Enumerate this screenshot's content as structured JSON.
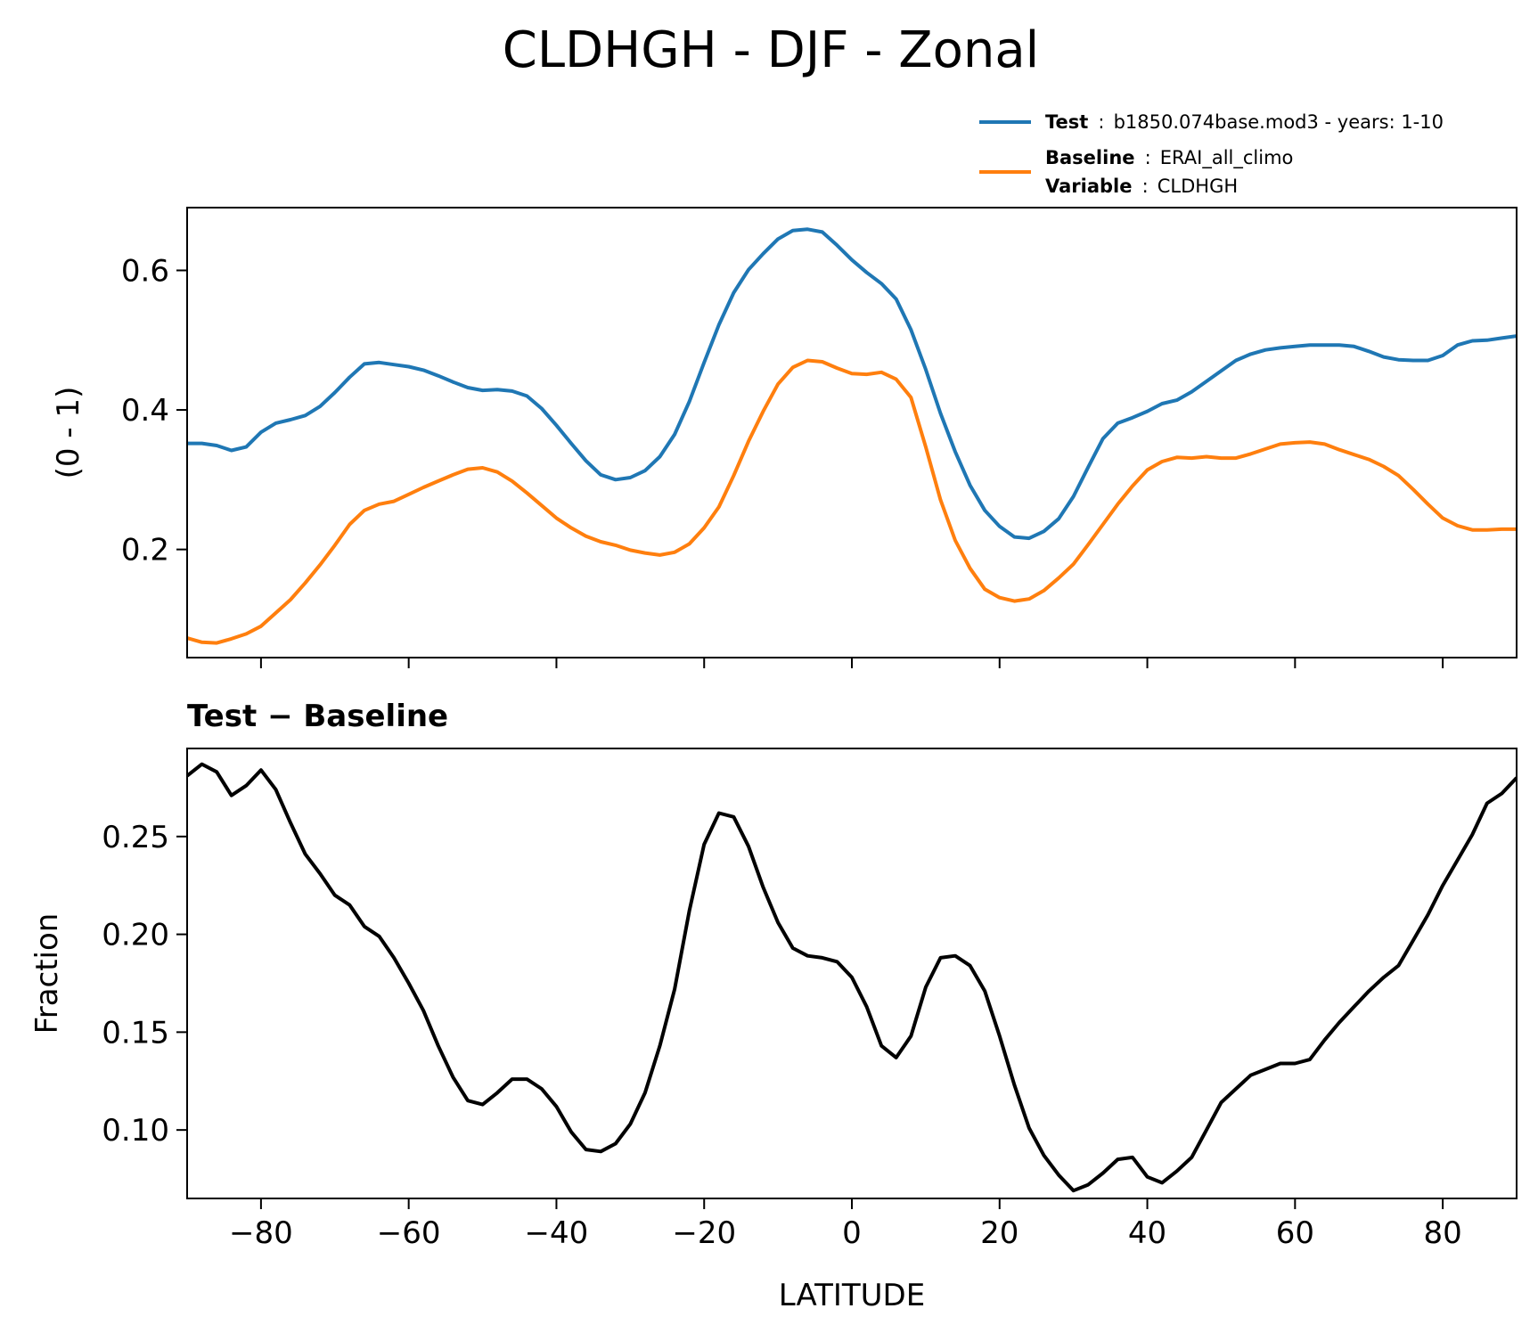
{
  "title": "CLDHGH - DJF - Zonal",
  "legend": {
    "test_key": "Test",
    "test_value": "b1850.074base.mod3 - years: 1-10",
    "baseline_key": "Baseline",
    "baseline_value": "ERAI_all_climo",
    "variable_key": "Variable",
    "variable_value": "CLDHGH",
    "separator": ":"
  },
  "colors": {
    "test": "#1f77b4",
    "baseline": "#ff7f0e",
    "diff": "#000000"
  },
  "chart_data": [
    {
      "type": "line",
      "title": "",
      "xlabel": "",
      "ylabel": "(0 - 1)",
      "xlim": [
        -90,
        90
      ],
      "ylim": [
        0.045,
        0.69
      ],
      "xticks": [
        -80,
        -60,
        -40,
        -20,
        0,
        20,
        40,
        60,
        80
      ],
      "yticks": [
        0.2,
        0.4,
        0.6
      ],
      "ytick_labels": [
        "0.2",
        "0.4",
        "0.6"
      ],
      "show_xtick_labels": false,
      "legend_location": "above-right",
      "x": [
        -90,
        -88,
        -86,
        -84,
        -82,
        -80,
        -78,
        -76,
        -74,
        -72,
        -70,
        -68,
        -66,
        -64,
        -62,
        -60,
        -58,
        -56,
        -54,
        -52,
        -50,
        -48,
        -46,
        -44,
        -42,
        -40,
        -38,
        -36,
        -34,
        -32,
        -30,
        -28,
        -26,
        -24,
        -22,
        -20,
        -18,
        -16,
        -14,
        -12,
        -10,
        -8,
        -6,
        -4,
        -2,
        0,
        2,
        4,
        6,
        8,
        10,
        12,
        14,
        16,
        18,
        20,
        22,
        24,
        26,
        28,
        30,
        32,
        34,
        36,
        38,
        40,
        42,
        44,
        46,
        48,
        50,
        52,
        54,
        56,
        58,
        60,
        62,
        64,
        66,
        68,
        70,
        72,
        74,
        76,
        78,
        80,
        82,
        84,
        86,
        88,
        90
      ],
      "series": [
        {
          "name": "Test",
          "color": "#1f77b4",
          "values": [
            0.352,
            0.352,
            0.349,
            0.342,
            0.347,
            0.368,
            0.381,
            0.386,
            0.392,
            0.405,
            0.425,
            0.447,
            0.466,
            0.468,
            0.465,
            0.462,
            0.457,
            0.449,
            0.44,
            0.432,
            0.428,
            0.429,
            0.427,
            0.42,
            0.402,
            0.378,
            0.352,
            0.327,
            0.307,
            0.3,
            0.303,
            0.313,
            0.333,
            0.365,
            0.412,
            0.468,
            0.522,
            0.568,
            0.601,
            0.624,
            0.645,
            0.657,
            0.659,
            0.655,
            0.636,
            0.615,
            0.597,
            0.581,
            0.559,
            0.515,
            0.458,
            0.395,
            0.34,
            0.292,
            0.256,
            0.233,
            0.218,
            0.216,
            0.226,
            0.244,
            0.276,
            0.318,
            0.359,
            0.381,
            0.389,
            0.398,
            0.409,
            0.414,
            0.426,
            0.441,
            0.456,
            0.471,
            0.48,
            0.486,
            0.489,
            0.491,
            0.493,
            0.493,
            0.493,
            0.491,
            0.484,
            0.476,
            0.472,
            0.471,
            0.471,
            0.478,
            0.493,
            0.499,
            0.5,
            0.503,
            0.506
          ]
        },
        {
          "name": "Baseline",
          "color": "#ff7f0e",
          "values": [
            0.073,
            0.067,
            0.066,
            0.072,
            0.079,
            0.09,
            0.109,
            0.128,
            0.152,
            0.178,
            0.206,
            0.236,
            0.256,
            0.265,
            0.269,
            0.279,
            0.289,
            0.298,
            0.307,
            0.315,
            0.317,
            0.311,
            0.298,
            0.281,
            0.263,
            0.245,
            0.231,
            0.219,
            0.211,
            0.206,
            0.199,
            0.195,
            0.192,
            0.196,
            0.208,
            0.231,
            0.261,
            0.306,
            0.355,
            0.398,
            0.437,
            0.461,
            0.471,
            0.469,
            0.46,
            0.452,
            0.451,
            0.454,
            0.444,
            0.418,
            0.347,
            0.271,
            0.213,
            0.173,
            0.143,
            0.131,
            0.126,
            0.129,
            0.141,
            0.159,
            0.179,
            0.207,
            0.236,
            0.265,
            0.291,
            0.314,
            0.326,
            0.332,
            0.331,
            0.333,
            0.331,
            0.331,
            0.337,
            0.344,
            0.351,
            0.353,
            0.354,
            0.351,
            0.343,
            0.336,
            0.329,
            0.319,
            0.306,
            0.286,
            0.265,
            0.245,
            0.234,
            0.228,
            0.228,
            0.229,
            0.229
          ]
        }
      ]
    },
    {
      "type": "line",
      "title": "Test − Baseline",
      "xlabel": "LATITUDE",
      "ylabel": "Fraction",
      "xlim": [
        -90,
        90
      ],
      "ylim": [
        0.065,
        0.295
      ],
      "xticks": [
        -80,
        -60,
        -40,
        -20,
        0,
        20,
        40,
        60,
        80
      ],
      "xtick_labels": [
        "−80",
        "−60",
        "−40",
        "−20",
        "0",
        "20",
        "40",
        "60",
        "80"
      ],
      "yticks": [
        0.1,
        0.15,
        0.2,
        0.25
      ],
      "ytick_labels": [
        "0.10",
        "0.15",
        "0.20",
        "0.25"
      ],
      "x": [
        -90,
        -88,
        -86,
        -84,
        -82,
        -80,
        -78,
        -76,
        -74,
        -72,
        -70,
        -68,
        -66,
        -64,
        -62,
        -60,
        -58,
        -56,
        -54,
        -52,
        -50,
        -48,
        -46,
        -44,
        -42,
        -40,
        -38,
        -36,
        -34,
        -32,
        -30,
        -28,
        -26,
        -24,
        -22,
        -20,
        -18,
        -16,
        -14,
        -12,
        -10,
        -8,
        -6,
        -4,
        -2,
        0,
        2,
        4,
        6,
        8,
        10,
        12,
        14,
        16,
        18,
        20,
        22,
        24,
        26,
        28,
        30,
        32,
        34,
        36,
        38,
        40,
        42,
        44,
        46,
        48,
        50,
        52,
        54,
        56,
        58,
        60,
        62,
        64,
        66,
        68,
        70,
        72,
        74,
        76,
        78,
        80,
        82,
        84,
        86,
        88,
        90
      ],
      "series": [
        {
          "color": "#000000",
          "values": [
            0.281,
            0.287,
            0.283,
            0.271,
            0.276,
            0.284,
            0.274,
            0.257,
            0.241,
            0.231,
            0.22,
            0.215,
            0.204,
            0.199,
            0.188,
            0.175,
            0.161,
            0.143,
            0.127,
            0.115,
            0.113,
            0.119,
            0.126,
            0.126,
            0.121,
            0.112,
            0.099,
            0.09,
            0.089,
            0.093,
            0.103,
            0.119,
            0.143,
            0.172,
            0.212,
            0.246,
            0.262,
            0.26,
            0.245,
            0.224,
            0.206,
            0.193,
            0.189,
            0.188,
            0.186,
            0.178,
            0.163,
            0.143,
            0.137,
            0.148,
            0.173,
            0.188,
            0.189,
            0.184,
            0.171,
            0.148,
            0.123,
            0.101,
            0.087,
            0.077,
            0.069,
            0.072,
            0.078,
            0.085,
            0.086,
            0.076,
            0.073,
            0.079,
            0.086,
            0.1,
            0.114,
            0.121,
            0.128,
            0.131,
            0.134,
            0.134,
            0.136,
            0.146,
            0.155,
            0.163,
            0.171,
            0.178,
            0.184,
            0.197,
            0.21,
            0.225,
            0.238,
            0.251,
            0.267,
            0.272,
            0.28
          ]
        }
      ]
    }
  ]
}
